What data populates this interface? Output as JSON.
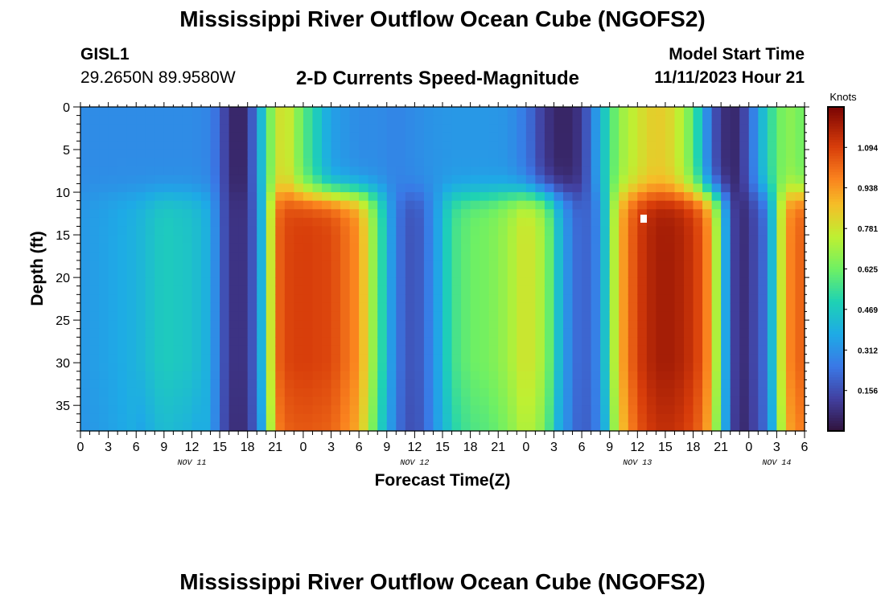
{
  "page": {
    "title": "Mississippi River Outflow Ocean Cube (NGOFS2)",
    "station_id": "GISL1",
    "station_coords": "29.2650N  89.9580W",
    "subtitle": "2-D Currents Speed-Magnitude",
    "model_start_label": "Model Start Time",
    "model_start_value": "11/11/2023 Hour 21",
    "footer_title": "Mississippi River Outflow Ocean Cube (NGOFS2)"
  },
  "chart_data": {
    "type": "heatmap",
    "title": "2-D Currents Speed-Magnitude",
    "xlabel": "Forecast Time(Z)",
    "ylabel": "Depth (ft)",
    "x_range_hours": [
      0,
      78
    ],
    "x_ticks": [
      "0",
      "3",
      "6",
      "9",
      "12",
      "15",
      "18",
      "21",
      "0",
      "3",
      "6",
      "9",
      "12",
      "15",
      "18",
      "21",
      "0",
      "3",
      "6",
      "9",
      "12",
      "15",
      "18",
      "21",
      "0",
      "3",
      "6"
    ],
    "date_labels": [
      {
        "label": "NOV 11",
        "hour": 12
      },
      {
        "label": "NOV 12",
        "hour": 36
      },
      {
        "label": "NOV 13",
        "hour": 60
      },
      {
        "label": "NOV 14",
        "hour": 75
      }
    ],
    "y_range": [
      0,
      38
    ],
    "y_ticks": [
      "0",
      "5",
      "10",
      "15",
      "20",
      "25",
      "30",
      "35"
    ],
    "colorbar": {
      "units": "Knots",
      "min": 0.0,
      "max": 1.25,
      "ticks": [
        "0.156",
        "0.312",
        "0.469",
        "0.625",
        "0.781",
        "0.938",
        "1.094"
      ],
      "colormap": "turbo"
    },
    "rows": [
      "surface 0-9 ft",
      "deep 10-38 ft"
    ],
    "columns_hour": [
      0,
      3,
      6,
      9,
      12,
      14,
      15,
      16,
      17,
      18,
      19,
      20,
      21,
      22,
      24,
      27,
      30,
      32,
      34,
      36,
      38,
      40,
      42,
      44,
      46,
      48,
      50,
      52,
      54,
      56,
      58,
      60,
      62,
      64,
      66,
      67,
      68,
      69,
      70,
      71,
      72,
      74,
      76,
      78
    ],
    "values_surface": [
      0.3,
      0.3,
      0.3,
      0.3,
      0.3,
      0.28,
      0.2,
      0.08,
      0.04,
      0.08,
      0.3,
      0.55,
      0.75,
      0.82,
      0.6,
      0.35,
      0.3,
      0.3,
      0.28,
      0.3,
      0.32,
      0.33,
      0.33,
      0.33,
      0.32,
      0.25,
      0.1,
      0.04,
      0.1,
      0.4,
      0.68,
      0.78,
      0.85,
      0.8,
      0.6,
      0.4,
      0.2,
      0.1,
      0.05,
      0.08,
      0.2,
      0.5,
      0.68,
      0.62
    ],
    "values_deep": [
      0.33,
      0.36,
      0.4,
      0.48,
      0.45,
      0.38,
      0.22,
      0.1,
      0.08,
      0.1,
      0.25,
      0.55,
      1.0,
      1.08,
      1.1,
      1.08,
      0.95,
      0.6,
      0.25,
      0.15,
      0.3,
      0.55,
      0.62,
      0.64,
      0.7,
      0.8,
      0.7,
      0.35,
      0.18,
      0.3,
      0.88,
      1.1,
      1.18,
      1.18,
      1.12,
      1.05,
      0.9,
      0.55,
      0.18,
      0.06,
      0.1,
      0.25,
      0.95,
      1.05
    ]
  }
}
